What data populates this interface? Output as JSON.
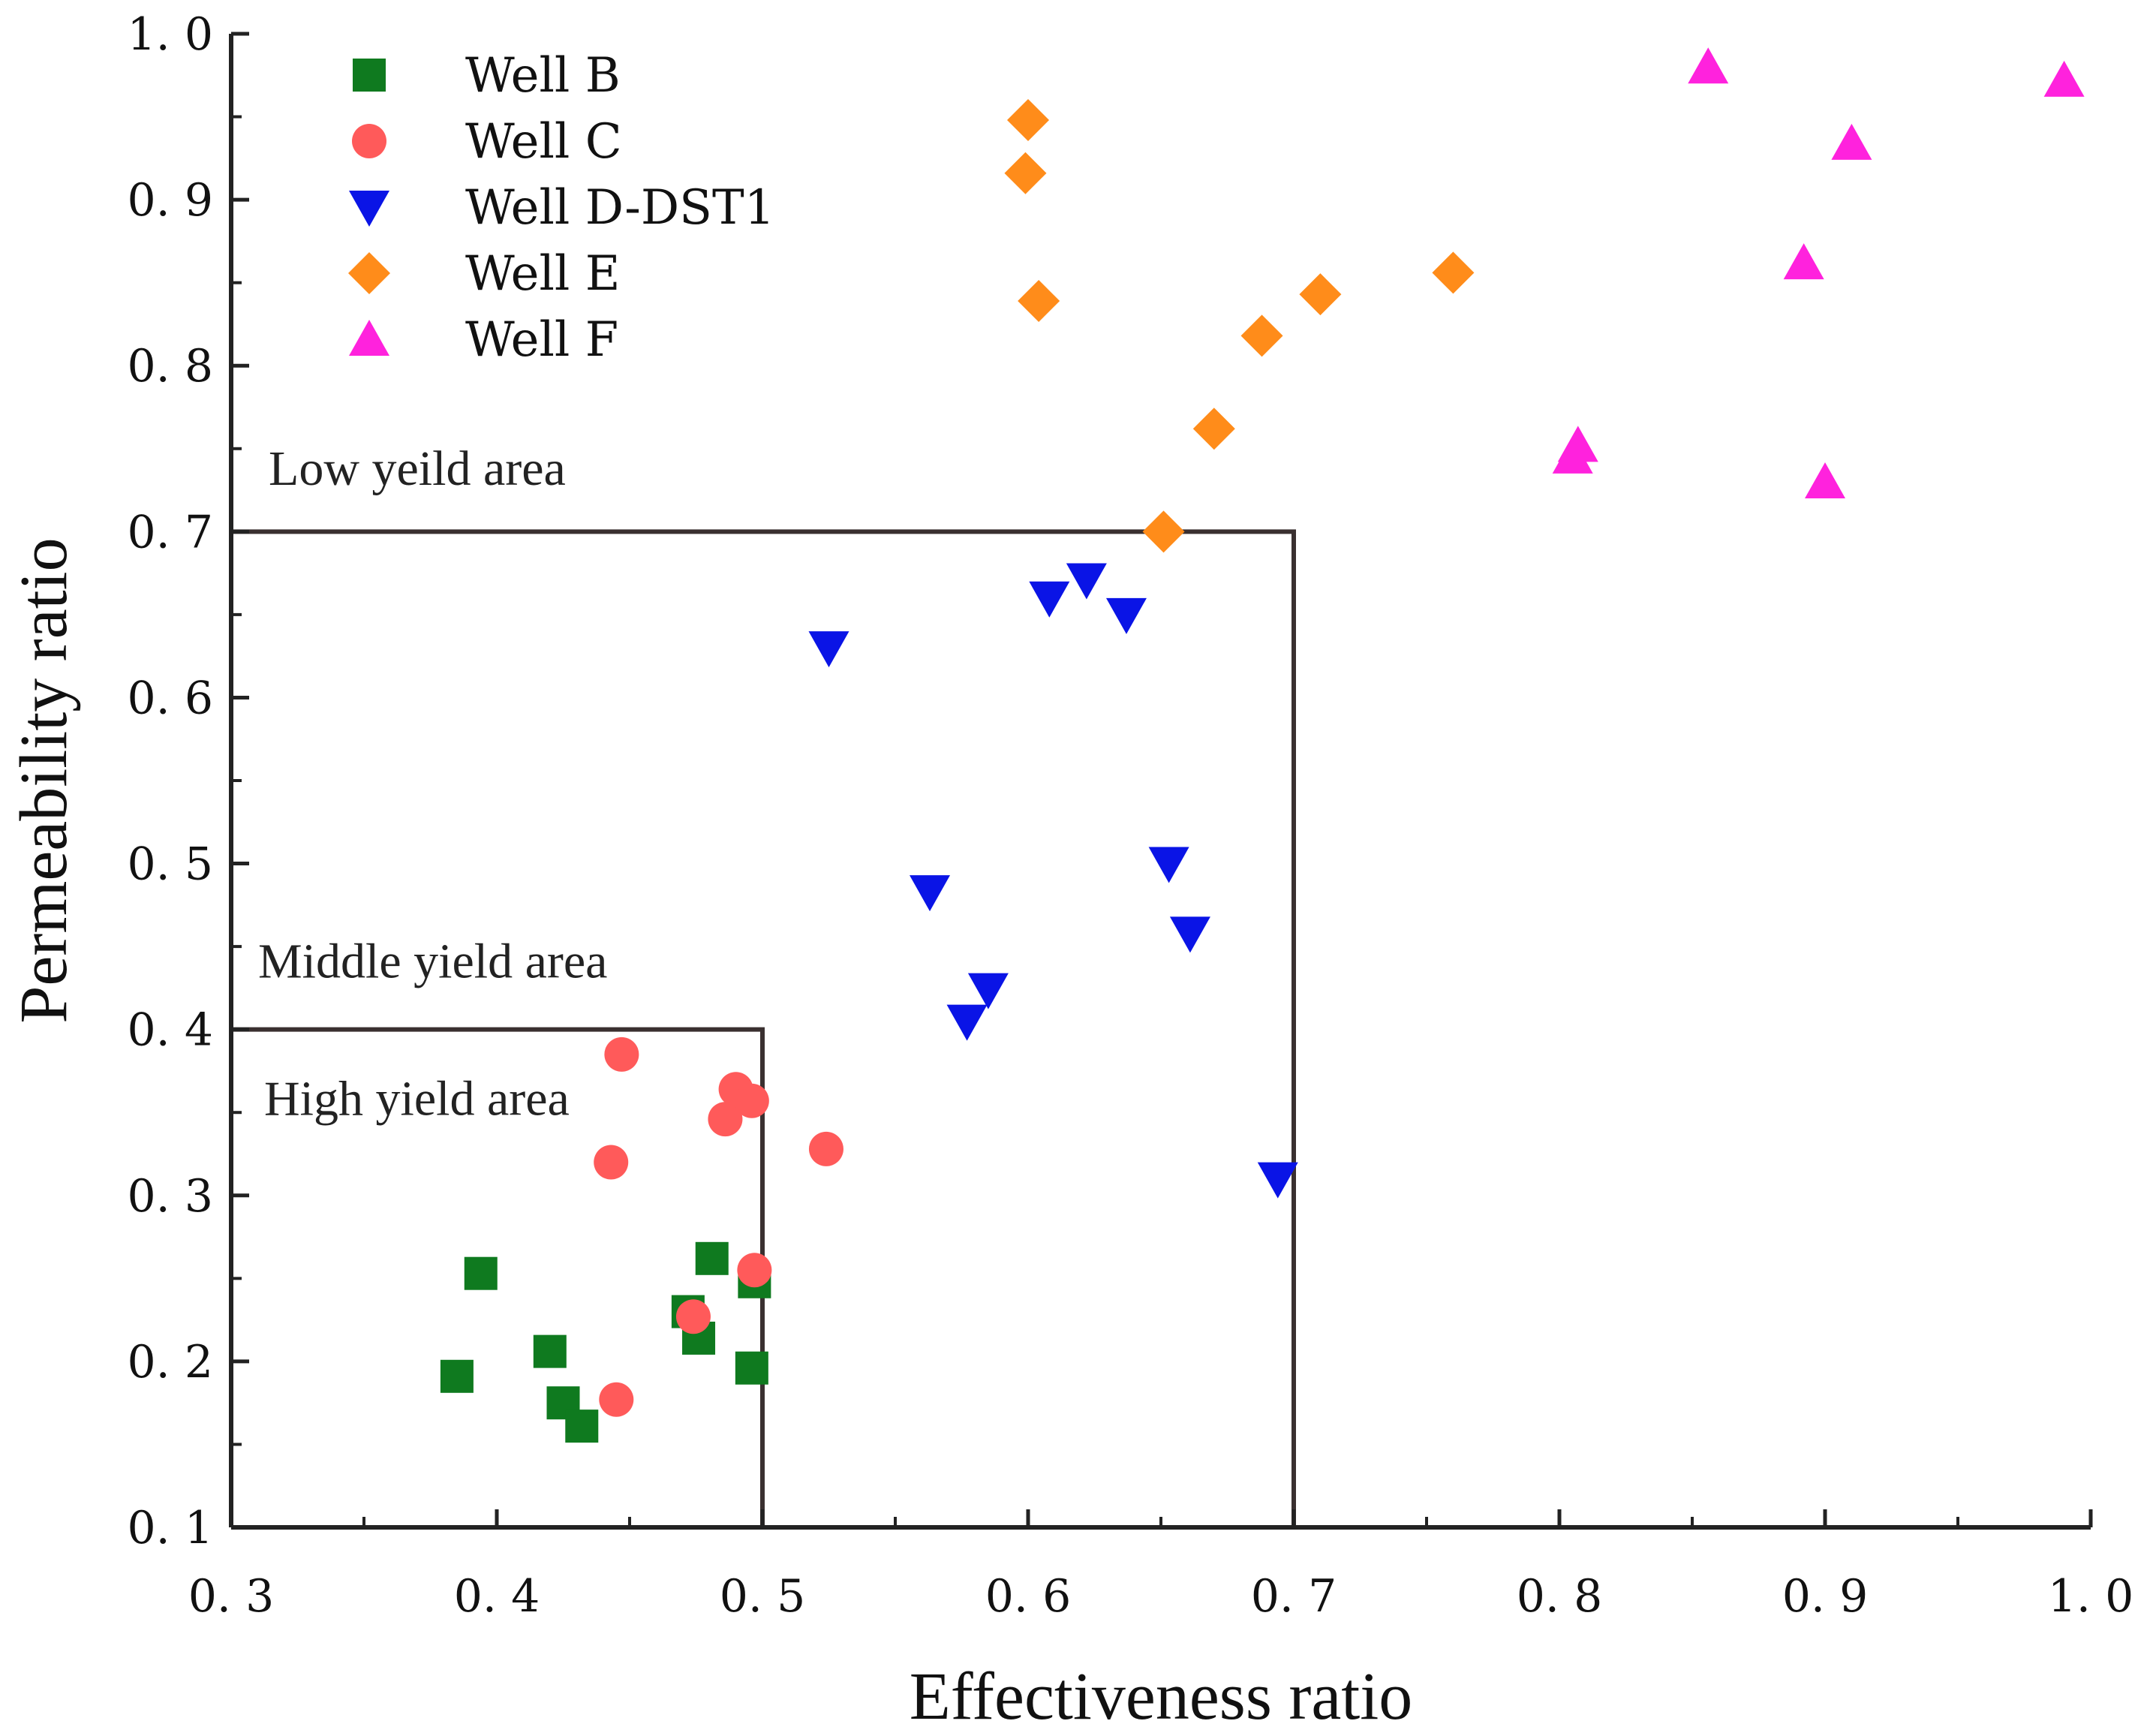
{
  "chart_data": {
    "type": "scatter",
    "xlabel": "Effectiveness ratio",
    "ylabel": "Permeability ratio",
    "xlim": [
      0.3,
      1.0
    ],
    "ylim": [
      0.1,
      1.0
    ],
    "x_ticks": [
      {
        "value": 0.3,
        "label": "0. 3"
      },
      {
        "value": 0.4,
        "label": "0. 4"
      },
      {
        "value": 0.5,
        "label": "0. 5"
      },
      {
        "value": 0.6,
        "label": "0. 6"
      },
      {
        "value": 0.7,
        "label": "0. 7"
      },
      {
        "value": 0.8,
        "label": "0. 8"
      },
      {
        "value": 0.9,
        "label": "0. 9"
      },
      {
        "value": 1.0,
        "label": "1. 0"
      }
    ],
    "y_ticks": [
      {
        "value": 0.1,
        "label": "0. 1"
      },
      {
        "value": 0.2,
        "label": "0. 2"
      },
      {
        "value": 0.3,
        "label": "0. 3"
      },
      {
        "value": 0.4,
        "label": "0. 4"
      },
      {
        "value": 0.5,
        "label": "0. 5"
      },
      {
        "value": 0.6,
        "label": "0. 6"
      },
      {
        "value": 0.7,
        "label": "0. 7"
      },
      {
        "value": 0.8,
        "label": "0. 8"
      },
      {
        "value": 0.9,
        "label": "0. 9"
      },
      {
        "value": 1.0,
        "label": "1. 0"
      }
    ],
    "legend_position": "top-left",
    "series": [
      {
        "name": "Well B",
        "marker": "square",
        "color": "#0f7a1f",
        "points": [
          [
            0.385,
            0.191
          ],
          [
            0.394,
            0.253
          ],
          [
            0.42,
            0.206
          ],
          [
            0.425,
            0.175
          ],
          [
            0.432,
            0.161
          ],
          [
            0.472,
            0.23
          ],
          [
            0.476,
            0.214
          ],
          [
            0.481,
            0.262
          ],
          [
            0.496,
            0.196
          ],
          [
            0.497,
            0.248
          ]
        ]
      },
      {
        "name": "Well C",
        "marker": "circle",
        "color": "#ff5a5a",
        "points": [
          [
            0.447,
            0.385
          ],
          [
            0.443,
            0.32
          ],
          [
            0.445,
            0.177
          ],
          [
            0.474,
            0.227
          ],
          [
            0.486,
            0.346
          ],
          [
            0.49,
            0.364
          ],
          [
            0.496,
            0.357
          ],
          [
            0.497,
            0.255
          ],
          [
            0.524,
            0.328
          ]
        ]
      },
      {
        "name": "Well D-DST1",
        "marker": "triangle-down",
        "color": "#0a14e6",
        "points": [
          [
            0.525,
            0.63
          ],
          [
            0.563,
            0.483
          ],
          [
            0.577,
            0.405
          ],
          [
            0.585,
            0.424
          ],
          [
            0.608,
            0.66
          ],
          [
            0.622,
            0.671
          ],
          [
            0.637,
            0.65
          ],
          [
            0.653,
            0.5
          ],
          [
            0.661,
            0.458
          ],
          [
            0.694,
            0.31
          ]
        ]
      },
      {
        "name": "Well E",
        "marker": "diamond",
        "color": "#ff8c1a",
        "points": [
          [
            0.6,
            0.948
          ],
          [
            0.599,
            0.916
          ],
          [
            0.604,
            0.839
          ],
          [
            0.651,
            0.7
          ],
          [
            0.67,
            0.762
          ],
          [
            0.688,
            0.818
          ],
          [
            0.71,
            0.843
          ],
          [
            0.76,
            0.856
          ]
        ]
      },
      {
        "name": "Well F",
        "marker": "triangle-up",
        "color": "#ff22dd",
        "points": [
          [
            0.856,
            0.98
          ],
          [
            0.99,
            0.972
          ],
          [
            0.91,
            0.934
          ],
          [
            0.892,
            0.862
          ],
          [
            0.805,
            0.745
          ],
          [
            0.807,
            0.752
          ],
          [
            0.9,
            0.73
          ]
        ]
      }
    ],
    "regions": [
      {
        "label": "High yield area",
        "x_max": 0.5,
        "y_max": 0.4
      },
      {
        "label": "Middle yield area",
        "x_max": 0.5,
        "y_max": 0.4
      },
      {
        "label": "Low yeild area",
        "x_max": 0.7,
        "y_max": 0.7
      }
    ]
  }
}
